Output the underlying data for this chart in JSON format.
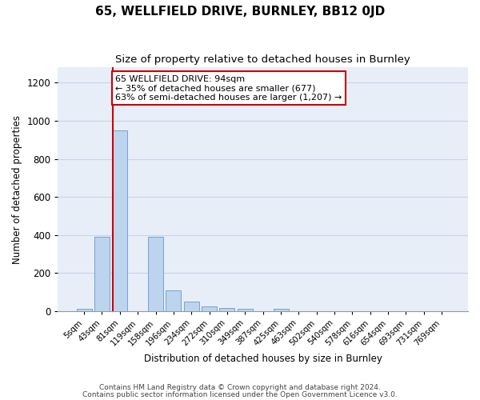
{
  "title": "65, WELLFIELD DRIVE, BURNLEY, BB12 0JD",
  "subtitle": "Size of property relative to detached houses in Burnley",
  "xlabel": "Distribution of detached houses by size in Burnley",
  "ylabel": "Number of detached properties",
  "bar_labels": [
    "5sqm",
    "43sqm",
    "81sqm",
    "119sqm",
    "158sqm",
    "196sqm",
    "234sqm",
    "272sqm",
    "310sqm",
    "349sqm",
    "387sqm",
    "425sqm",
    "463sqm",
    "502sqm",
    "540sqm",
    "578sqm",
    "616sqm",
    "654sqm",
    "693sqm",
    "731sqm",
    "769sqm"
  ],
  "bar_values": [
    12,
    390,
    950,
    0,
    390,
    110,
    50,
    25,
    15,
    12,
    0,
    12,
    0,
    0,
    0,
    0,
    0,
    0,
    0,
    0,
    0
  ],
  "bar_color": "#bcd4ee",
  "bar_edgecolor": "#6699cc",
  "property_line_color": "#cc0000",
  "annotation_text": "65 WELLFIELD DRIVE: 94sqm\n← 35% of detached houses are smaller (677)\n63% of semi-detached houses are larger (1,207) →",
  "annotation_box_color": "white",
  "annotation_box_edgecolor": "#cc0000",
  "ylim": [
    0,
    1280
  ],
  "yticks": [
    0,
    200,
    400,
    600,
    800,
    1000,
    1200
  ],
  "grid_color": "#c8d4e8",
  "bg_color": "#e8eef8",
  "footnote1": "Contains HM Land Registry data © Crown copyright and database right 2024.",
  "footnote2": "Contains public sector information licensed under the Open Government Licence v3.0."
}
